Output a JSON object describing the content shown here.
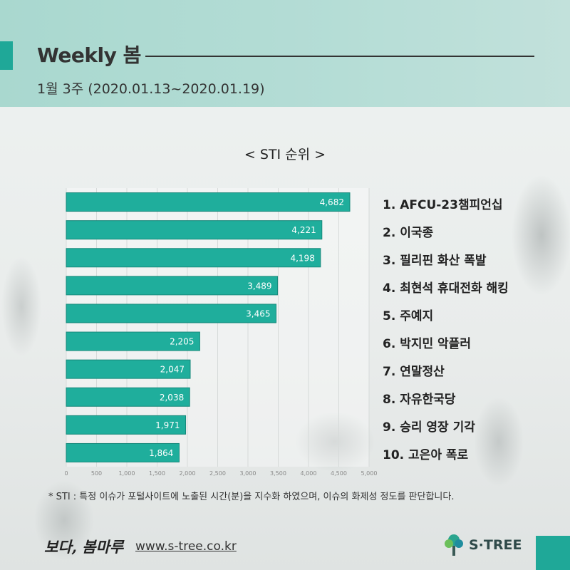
{
  "header": {
    "title": "Weekly 봄",
    "subtitle": "1월 3주 (2020.01.13~2020.01.19)"
  },
  "chart_title": "< STI 순위 >",
  "chart_data": {
    "type": "bar",
    "orientation": "horizontal",
    "title": "< STI 순위 >",
    "categories": [
      "1. AFCU-23챔피언십",
      "2. 이국종",
      "3. 필리핀 화산 폭발",
      "4. 최현석 휴대전화 해킹",
      "5. 주예지",
      "6. 박지민 악플러",
      "7. 연말정산",
      "8. 자유한국당",
      "9. 승리 영장 기각",
      "10. 고은아 폭로"
    ],
    "values": [
      4682,
      4221,
      4198,
      3489,
      3465,
      2205,
      2047,
      2038,
      1971,
      1864
    ],
    "value_labels": [
      "4,682",
      "4,221",
      "4,198",
      "3,489",
      "3,465",
      "2,205",
      "2,047",
      "2,038",
      "1,971",
      "1,864"
    ],
    "xlim": [
      0,
      5000
    ],
    "x_ticks": [
      "0",
      "500",
      "1,000",
      "1,500",
      "2,000",
      "2,500",
      "3,000",
      "3,500",
      "4,000",
      "4,500",
      "5,000"
    ],
    "grid": true,
    "bar_color": "#1fae9c"
  },
  "footnote": "* STI : 특정 이슈가 포털사이트에 노출된 시간(분)을 지수화 하였으며, 이슈의 화제성 정도를 판단합니다.",
  "footer": {
    "signature": "보다, 봄마루",
    "url": "www.s-tree.co.kr",
    "logo_text": "S·TREE"
  },
  "colors": {
    "accent": "#1fa898",
    "header_band": "#b0dbd3"
  }
}
